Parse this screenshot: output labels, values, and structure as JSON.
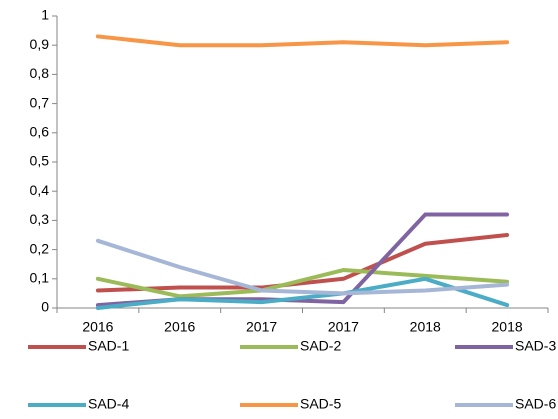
{
  "chart_data": {
    "type": "line",
    "categories": [
      "2016",
      "2016",
      "2017",
      "2017",
      "2018",
      "2018"
    ],
    "series": [
      {
        "name": "SAD-1",
        "color": "#c0504d",
        "values": [
          0.06,
          0.07,
          0.07,
          0.1,
          0.22,
          0.25
        ]
      },
      {
        "name": "SAD-2",
        "color": "#9bbb59",
        "values": [
          0.1,
          0.04,
          0.06,
          0.13,
          0.11,
          0.09
        ]
      },
      {
        "name": "SAD-3",
        "color": "#8064a2",
        "values": [
          0.01,
          0.03,
          0.03,
          0.02,
          0.32,
          0.32
        ]
      },
      {
        "name": "SAD-4",
        "color": "#4bacc6",
        "values": [
          0.0,
          0.03,
          0.02,
          0.05,
          0.1,
          0.01
        ]
      },
      {
        "name": "SAD-5",
        "color": "#f79646",
        "values": [
          0.93,
          0.9,
          0.9,
          0.91,
          0.9,
          0.91
        ]
      },
      {
        "name": "SAD-6",
        "color": "#a5b6d6",
        "values": [
          0.23,
          0.14,
          0.06,
          0.05,
          0.06,
          0.08
        ]
      }
    ],
    "ylim": [
      0,
      1
    ],
    "yticks": [
      0,
      {
        "value": 0.1,
        "label": "0,1"
      },
      {
        "value": 0.2,
        "label": "0,2"
      },
      {
        "value": 0.3,
        "label": "0,3"
      },
      {
        "value": 0.4,
        "label": "0,4"
      },
      {
        "value": 0.5,
        "label": "0,5"
      },
      {
        "value": 0.6,
        "label": "0,6"
      },
      {
        "value": 0.7,
        "label": "0,7"
      },
      {
        "value": 0.8,
        "label": "0,8"
      },
      {
        "value": 0.9,
        "label": "0,9"
      },
      1
    ],
    "grid": false,
    "legend": "bottom"
  }
}
